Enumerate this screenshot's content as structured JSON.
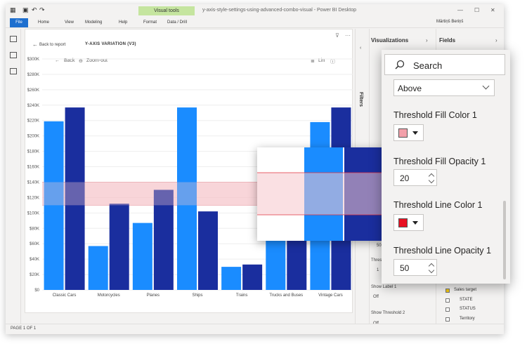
{
  "window": {
    "title": "y-axis-style-settings-using-advanced-combo-visual - Power BI Desktop",
    "user": "Mārtiņš Beriņš",
    "contextual_tab": "Visual tools"
  },
  "ribbon": {
    "tabs": [
      "File",
      "Home",
      "View",
      "Modeling",
      "Help",
      "Format",
      "Data / Drill"
    ]
  },
  "report": {
    "back_label": "Back to report",
    "visual_title": "Y-AXIS VARIATION (V3)",
    "back_btn": "Back",
    "zoom_out": "Zoom-out",
    "scale_toggle": "Lin",
    "page_info": "PAGE 1 OF 1"
  },
  "panes": {
    "filters_label": "Filters",
    "visualizations_title": "Visualizations",
    "fields_title": "Fields",
    "fields_items": [
      "Sales target",
      "STATE",
      "STATUS",
      "Territory"
    ],
    "show_label_1": "Show Label 1",
    "show_threshold_2": "Show Threshold 2",
    "off_1": "Off",
    "off_2": "Off",
    "thresh_short": "Thres",
    "val_50": "50",
    "val_1": "1"
  },
  "popup": {
    "search_placeholder": "Search",
    "position_value": "Above",
    "fill_color_label": "Threshold Fill Color 1",
    "fill_color": "#f2a0aa",
    "fill_opacity_label": "Threshold Fill Opacity 1",
    "fill_opacity": "20",
    "line_color_label": "Threshold Line Color 1",
    "line_color": "#e81123",
    "line_opacity_label": "Threshold Line Opacity 1",
    "line_opacity": "50"
  },
  "chart_data": {
    "type": "bar",
    "categories": [
      "Classic Cars",
      "Motorcycles",
      "Planes",
      "Ships",
      "Trains",
      "Trucks and Buses",
      "Vintage Cars"
    ],
    "series": [
      {
        "values": [
          219000,
          57000,
          87000,
          237000,
          30000,
          141000,
          218000
        ],
        "color": "#1a8cff"
      },
      {
        "values": [
          237000,
          112000,
          130000,
          102000,
          33000,
          130000,
          237000
        ],
        "color": "#1a2e9e"
      }
    ],
    "y_ticks": [
      "$0",
      "$20K",
      "$40K",
      "$60K",
      "$80K",
      "$100K",
      "$120K",
      "$140K",
      "$160K",
      "$180K",
      "$200K",
      "$220K",
      "$240K",
      "$260K",
      "$280K",
      "$300K"
    ],
    "ylim": [
      0,
      300000
    ],
    "threshold": {
      "low": 110000,
      "high": 140000,
      "fill": "#f5c6cc",
      "line": "#e8a0a8"
    },
    "grid": true
  }
}
